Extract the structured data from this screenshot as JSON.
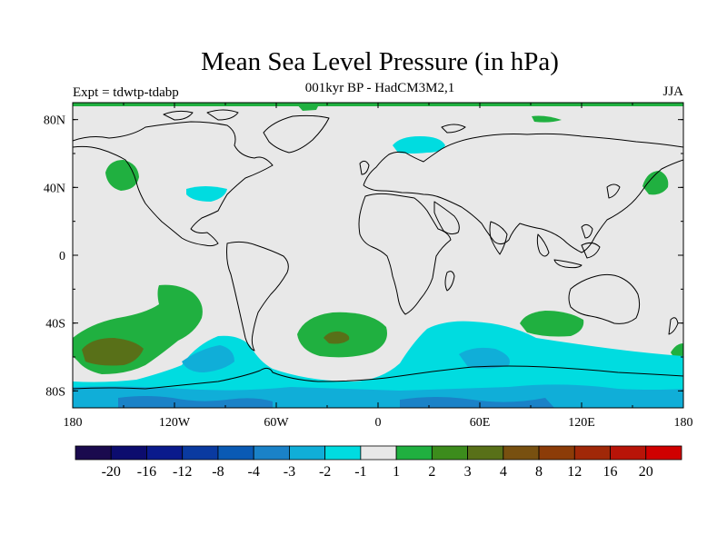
{
  "header": {
    "title": "Mean Sea Level Pressure (in hPa)",
    "subtitle": "001kyr BP - HadCM3M2,1",
    "experiment": "Expt = tdwtp-tdabp",
    "season": "JJA"
  },
  "map": {
    "lon_range": [
      -180,
      180
    ],
    "lat_range": [
      -90,
      90
    ],
    "projection": "cylindrical-equidistant",
    "background_color": "#e8e8e8",
    "x_ticks": [
      "180",
      "120W",
      "60W",
      "0",
      "60E",
      "120E",
      "180"
    ],
    "y_ticks": [
      "80N",
      "40N",
      "0",
      "40S",
      "80S"
    ],
    "coastline_color": "#000000"
  },
  "colorbar": {
    "colors": [
      "#1a0a4e",
      "#0c0c6e",
      "#0a1a8c",
      "#0a3aa0",
      "#0a5ab4",
      "#1a82c8",
      "#10aed8",
      "#00dce0",
      "#e8e8e8",
      "#20b040",
      "#3c8c1c",
      "#587018",
      "#785010",
      "#8c3c08",
      "#a02808",
      "#b81408",
      "#d00000"
    ],
    "labels": [
      "-20",
      "-16",
      "-12",
      "-8",
      "-4",
      "-3",
      "-2",
      "-1",
      "1",
      "2",
      "3",
      "4",
      "8",
      "12",
      "16",
      "20"
    ]
  }
}
